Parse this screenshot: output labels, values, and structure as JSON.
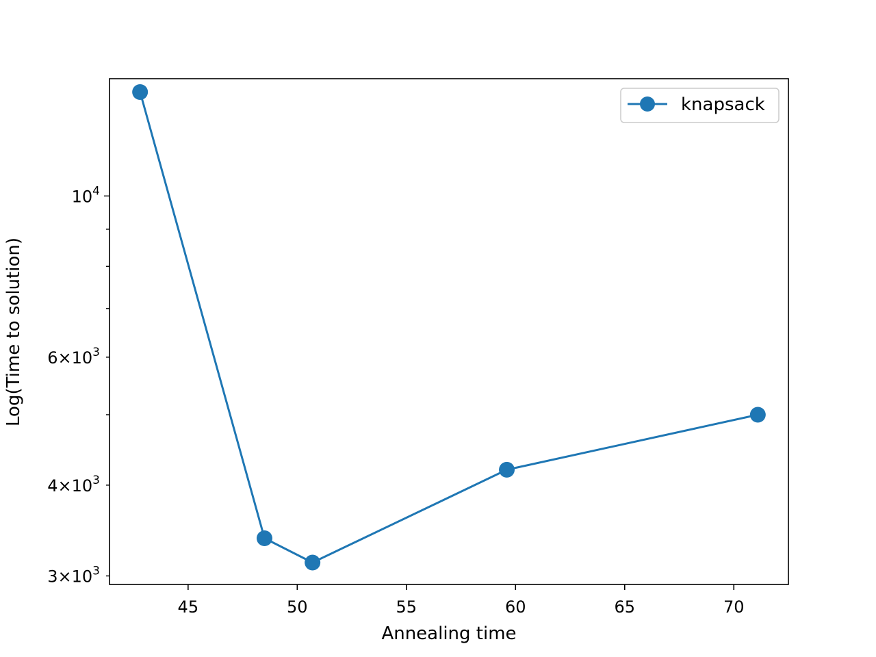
{
  "chart_data": {
    "type": "line",
    "title": "",
    "xlabel": "Annealing time",
    "ylabel": "Log(Time to solution)",
    "yscale": "log",
    "xlim": [
      41.4,
      72.5
    ],
    "ylim": [
      2920,
      14500
    ],
    "xticks": [
      {
        "value": 45,
        "label": "45"
      },
      {
        "value": 50,
        "label": "50"
      },
      {
        "value": 55,
        "label": "55"
      },
      {
        "value": 60,
        "label": "60"
      },
      {
        "value": 65,
        "label": "65"
      },
      {
        "value": 70,
        "label": "70"
      }
    ],
    "yticks_major": [
      {
        "value": 10000,
        "base": "10",
        "exp": "4"
      }
    ],
    "yticks_minor": [
      {
        "value": 3000,
        "base": "3×10",
        "exp": "3"
      },
      {
        "value": 4000,
        "base": "4×10",
        "exp": "3"
      },
      {
        "value": 5000,
        "base": "",
        "exp": ""
      },
      {
        "value": 6000,
        "base": "6×10",
        "exp": "3"
      },
      {
        "value": 7000,
        "base": "",
        "exp": ""
      },
      {
        "value": 8000,
        "base": "",
        "exp": ""
      },
      {
        "value": 9000,
        "base": "",
        "exp": ""
      }
    ],
    "series": [
      {
        "name": "knapsack",
        "color": "#1f77b4",
        "marker": "circle",
        "x": [
          42.8,
          48.5,
          50.7,
          59.6,
          71.1
        ],
        "y": [
          13900,
          3380,
          3130,
          4200,
          5000
        ]
      }
    ],
    "legend": {
      "position": "top-right"
    },
    "grid": false
  }
}
